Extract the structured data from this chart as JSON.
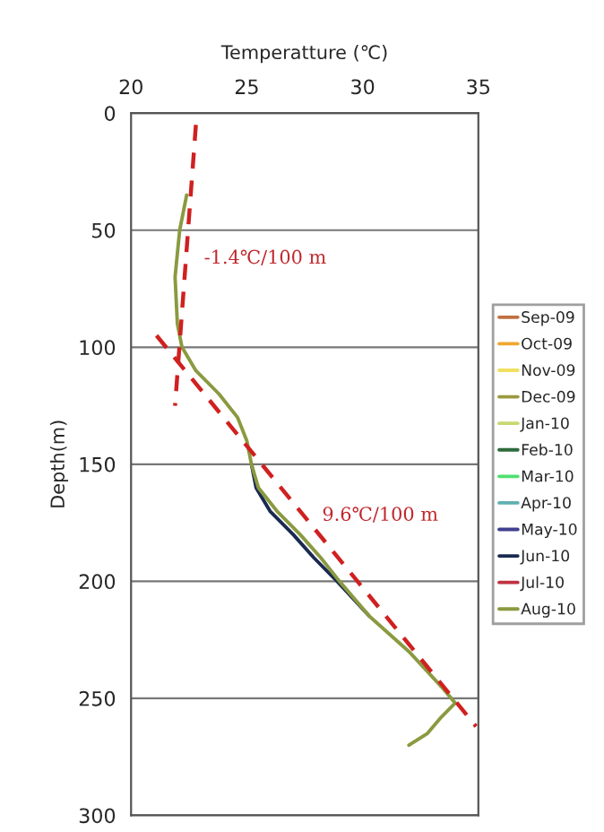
{
  "chart_data": {
    "type": "line",
    "xlabel": "Temperatture (℃)",
    "ylabel": "Depth(m)",
    "xlim": [
      20,
      35
    ],
    "xticks": [
      20,
      25,
      30,
      35
    ],
    "ylim": [
      300,
      0
    ],
    "yticks": [
      0,
      50,
      100,
      150,
      200,
      250,
      300
    ],
    "grid": "y",
    "legend": "right",
    "line_style": "solid",
    "marker": "none",
    "series": [
      {
        "name": "Sep-09",
        "color": "#c07040"
      },
      {
        "name": "Oct-09",
        "color": "#f0a830"
      },
      {
        "name": "Nov-09",
        "color": "#f0e060"
      },
      {
        "name": "Dec-09",
        "color": "#9a9a40"
      },
      {
        "name": "Jan-10",
        "color": "#c8d870"
      },
      {
        "name": "Feb-10",
        "color": "#2e6b3c"
      },
      {
        "name": "Mar-10",
        "color": "#50e070"
      },
      {
        "name": "Apr-10",
        "color": "#60b0b0"
      },
      {
        "name": "May-10",
        "color": "#404090"
      },
      {
        "name": "Jun-10",
        "color": "#1a2a50",
        "x": [
          25.2,
          25.4,
          26.0,
          27.0,
          27.9,
          28.9,
          30.3
        ],
        "values": [
          150,
          160,
          170,
          180,
          190,
          200,
          215
        ]
      },
      {
        "name": "Jul-10",
        "color": "#c03040"
      },
      {
        "name": "Aug-10",
        "color": "#8a9a40",
        "x": [
          22.4,
          22.1,
          21.9,
          22.0,
          22.2,
          22.8,
          23.8,
          24.6,
          25.0,
          25.2,
          25.5,
          26.3,
          27.3,
          28.2,
          29.0,
          30.3,
          32.0,
          33.4,
          34.0,
          33.4,
          32.8,
          32.0
        ],
        "values": [
          35,
          50,
          70,
          90,
          100,
          110,
          120,
          130,
          140,
          150,
          160,
          170,
          180,
          190,
          200,
          215,
          230,
          245,
          252,
          258,
          265,
          270
        ]
      },
      {
        "type": "line",
        "color": "#d02020",
        "line_style": "dashed",
        "x": [
          22.8,
          21.9
        ],
        "values": [
          5,
          125
        ]
      },
      {
        "type": "line",
        "color": "#d02020",
        "line_style": "dashed",
        "x": [
          21.1,
          34.9
        ],
        "values": [
          95,
          262
        ]
      }
    ],
    "annotations": [
      "-1.4℃/100 m",
      "9.6℃/100 m"
    ]
  }
}
